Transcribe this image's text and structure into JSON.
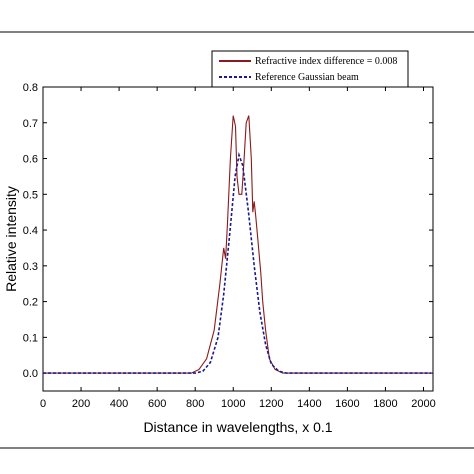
{
  "chart_data": {
    "type": "line",
    "title": "",
    "xlabel": "Distance in wavelengths, x 0.1",
    "ylabel": "Relative intensity",
    "xlim": [
      0,
      2050
    ],
    "ylim": [
      -0.05,
      0.8
    ],
    "x_ticks": [
      0,
      200,
      400,
      600,
      800,
      1000,
      1200,
      1400,
      1600,
      1800,
      2000
    ],
    "y_ticks": [
      "0.0",
      "0.1",
      "0.2",
      "0.3",
      "0.4",
      "0.5",
      "0.6",
      "0.7",
      "0.8"
    ],
    "legend_position": "top-right",
    "grid": false,
    "series": [
      {
        "name": "Refractive index difference = 0.008",
        "color": "#8b1a1a",
        "style": "solid",
        "points": [
          [
            0,
            0
          ],
          [
            780,
            0
          ],
          [
            820,
            0.01
          ],
          [
            860,
            0.04
          ],
          [
            900,
            0.12
          ],
          [
            930,
            0.25
          ],
          [
            950,
            0.35
          ],
          [
            960,
            0.32
          ],
          [
            970,
            0.42
          ],
          [
            985,
            0.6
          ],
          [
            1000,
            0.72
          ],
          [
            1012,
            0.69
          ],
          [
            1020,
            0.55
          ],
          [
            1030,
            0.5
          ],
          [
            1045,
            0.5
          ],
          [
            1055,
            0.58
          ],
          [
            1068,
            0.7
          ],
          [
            1082,
            0.72
          ],
          [
            1095,
            0.6
          ],
          [
            1103,
            0.45
          ],
          [
            1110,
            0.48
          ],
          [
            1118,
            0.44
          ],
          [
            1125,
            0.4
          ],
          [
            1135,
            0.34
          ],
          [
            1145,
            0.28
          ],
          [
            1155,
            0.2
          ],
          [
            1170,
            0.12
          ],
          [
            1190,
            0.04
          ],
          [
            1220,
            0.01
          ],
          [
            1260,
            0
          ],
          [
            2040,
            0
          ]
        ]
      },
      {
        "name": "Reference Gaussian beam",
        "color": "#1a1a8f",
        "style": "dashed",
        "points": [
          [
            0,
            0
          ],
          [
            800,
            0
          ],
          [
            840,
            0.005
          ],
          [
            880,
            0.03
          ],
          [
            920,
            0.1
          ],
          [
            950,
            0.22
          ],
          [
            980,
            0.38
          ],
          [
            1010,
            0.55
          ],
          [
            1030,
            0.61
          ],
          [
            1050,
            0.58
          ],
          [
            1080,
            0.45
          ],
          [
            1110,
            0.3
          ],
          [
            1140,
            0.17
          ],
          [
            1170,
            0.08
          ],
          [
            1200,
            0.025
          ],
          [
            1240,
            0.005
          ],
          [
            1280,
            0
          ],
          [
            2040,
            0
          ]
        ]
      }
    ]
  }
}
